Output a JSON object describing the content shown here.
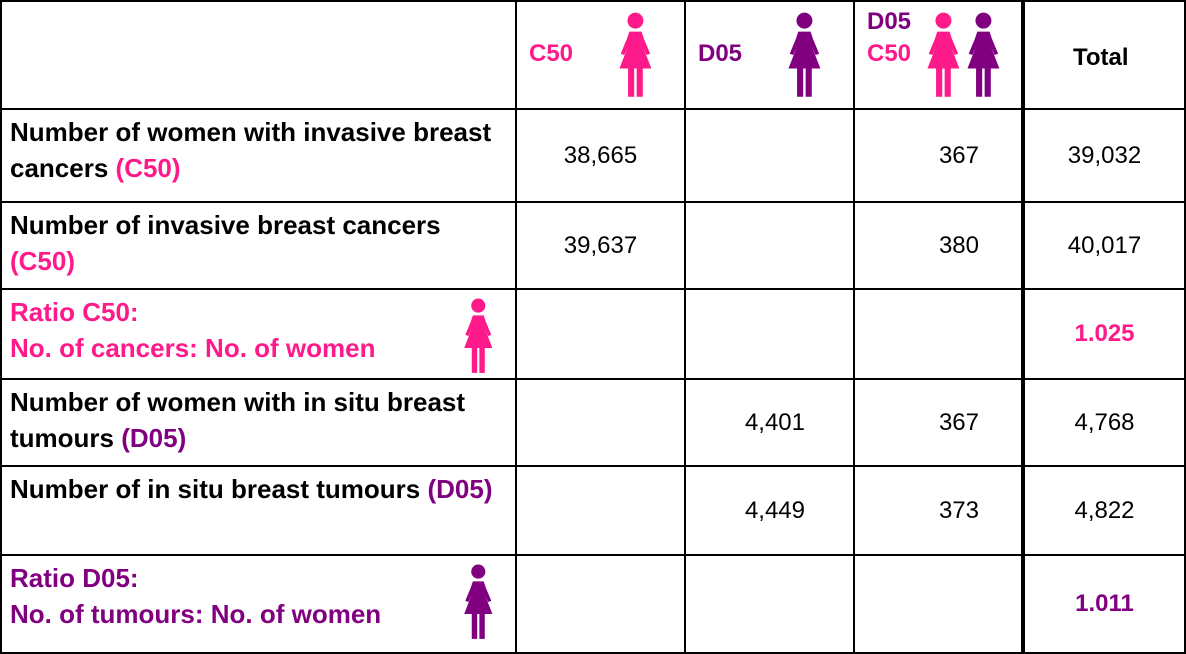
{
  "header": [
    {
      "lines": [
        "C50"
      ],
      "color": "#ff1a8c"
    },
    {
      "lines": [
        "D05"
      ],
      "color": "#800080"
    },
    {
      "lines": [
        "D05",
        "C50"
      ],
      "color": "#800080"
    },
    {
      "lines": [
        "Total"
      ],
      "color": "#000000"
    }
  ],
  "rows": [
    {
      "label": "Number of women with invasive breast cancers",
      "code": "(C50)",
      "color": "#ff1a8c",
      "cells": [
        "38,665",
        null,
        "367",
        "39,032"
      ]
    },
    {
      "label": "Number of invasive breast cancers",
      "code": "(C50)",
      "color": "#ff1a8c",
      "cells": [
        "39,637",
        null,
        "380",
        "40,017"
      ]
    },
    {
      "label": [
        "Ratio C50:",
        "No. of cancers: No. of women"
      ],
      "color": "#ff1a8c",
      "cells": [
        null,
        null,
        null,
        "1.025"
      ]
    },
    {
      "label": "Number of women with in situ breast tumours",
      "code": "(D05)",
      "color": "#800080",
      "cells": [
        null,
        "4,401",
        "367",
        "4,768"
      ]
    },
    {
      "label": "Number of in situ breast tumours",
      "code": "(D05)",
      "color": "#800080",
      "cells": [
        null,
        "4,449",
        "373",
        "4,822"
      ]
    },
    {
      "label": [
        "Ratio D05:",
        "No. of tumours: No. of women"
      ],
      "color": "#800080",
      "cells": [
        null,
        null,
        null,
        "1.011"
      ]
    }
  ]
}
